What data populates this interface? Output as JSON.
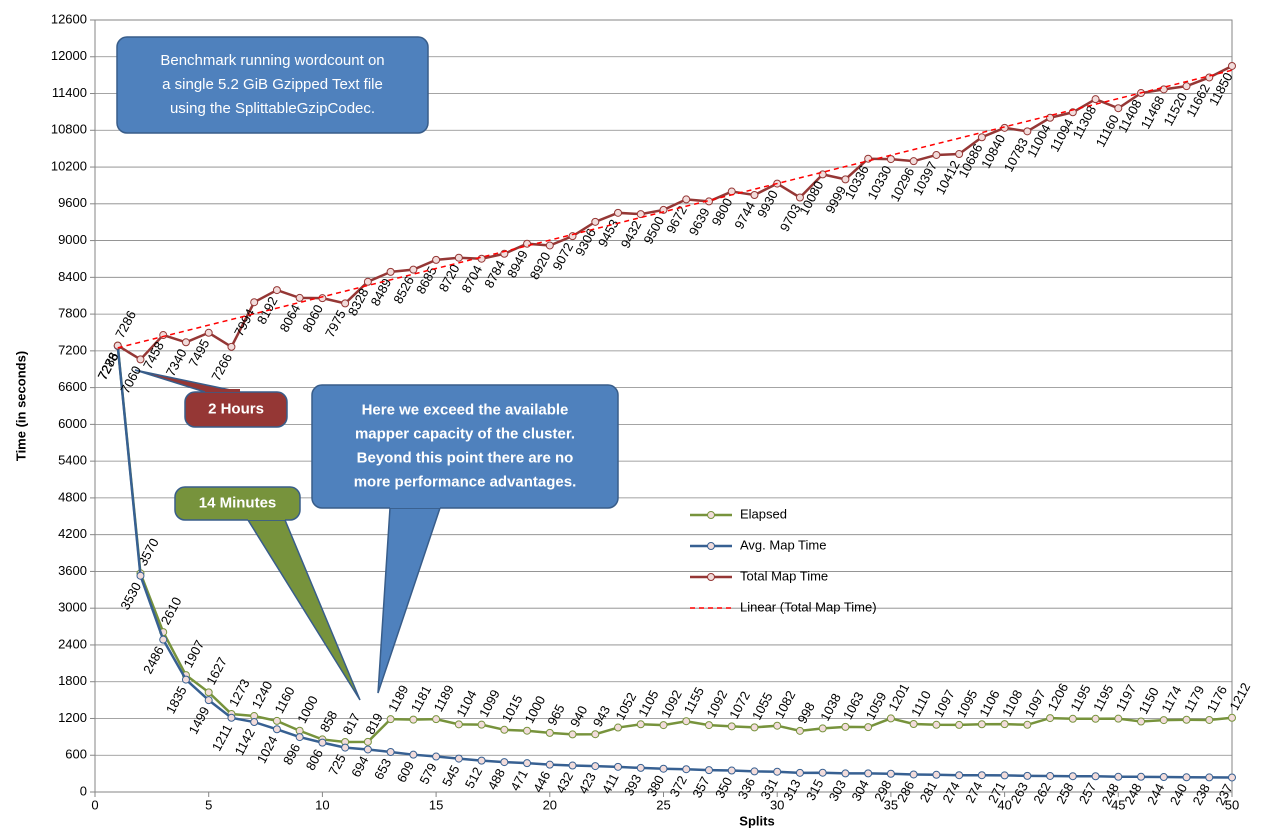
{
  "chart_data": {
    "type": "line",
    "xlabel": "Splits",
    "ylabel": "Time (in seconds)",
    "xlim": [
      0,
      50
    ],
    "xticks": [
      0,
      5,
      10,
      15,
      20,
      25,
      30,
      35,
      40,
      45,
      50
    ],
    "ylim": [
      0,
      12600
    ],
    "yticks": [
      0,
      600,
      1200,
      1800,
      2400,
      3000,
      3600,
      4200,
      4800,
      5400,
      6000,
      6600,
      7200,
      7800,
      8400,
      9000,
      9600,
      10200,
      10800,
      11400,
      12000,
      12600
    ],
    "grid": true,
    "x": [
      1,
      2,
      3,
      4,
      5,
      6,
      7,
      8,
      9,
      10,
      11,
      12,
      13,
      14,
      15,
      16,
      17,
      18,
      19,
      20,
      21,
      22,
      23,
      24,
      25,
      26,
      27,
      28,
      29,
      30,
      31,
      32,
      33,
      34,
      35,
      36,
      37,
      38,
      39,
      40,
      41,
      42,
      43,
      44,
      45,
      46,
      47,
      48,
      49,
      50
    ],
    "series": [
      {
        "name": "Elapsed",
        "color": "#77933c",
        "label_side": "above",
        "values": [
          7286,
          3570,
          2610,
          1907,
          1627,
          1273,
          1240,
          1160,
          1000,
          858,
          817,
          819,
          1189,
          1181,
          1189,
          1104,
          1099,
          1015,
          1000,
          965,
          940,
          943,
          1052,
          1105,
          1092,
          1155,
          1092,
          1072,
          1055,
          1082,
          998,
          1038,
          1063,
          1059,
          1201,
          1110,
          1097,
          1095,
          1106,
          1108,
          1097,
          1206,
          1195,
          1195,
          1197,
          1150,
          1174,
          1179,
          1176,
          1212
        ]
      },
      {
        "name": "Avg. Map Time",
        "color": "#376092",
        "label_side": "below",
        "values": [
          7278,
          3530,
          2486,
          1835,
          1499,
          1211,
          1142,
          1024,
          896,
          806,
          725,
          694,
          653,
          609,
          579,
          545,
          512,
          488,
          471,
          446,
          432,
          423,
          411,
          393,
          380,
          372,
          357,
          350,
          336,
          331,
          313,
          315,
          303,
          304,
          298,
          286,
          281,
          274,
          274,
          271,
          263,
          262,
          258,
          257,
          248,
          248,
          244,
          240,
          238,
          237
        ]
      },
      {
        "name": "Total Map Time",
        "color": "#953735",
        "label_side": "below",
        "values": [
          7286,
          7060,
          7458,
          7340,
          7495,
          7266,
          7994,
          8192,
          8064,
          8060,
          7975,
          8328,
          8489,
          8526,
          8685,
          8720,
          8704,
          8784,
          8949,
          8920,
          9072,
          9306,
          9453,
          9432,
          9500,
          9672,
          9639,
          9800,
          9744,
          9930,
          9703,
          10080,
          9999,
          10336,
          10330,
          10296,
          10397,
          10412,
          10686,
          10840,
          10783,
          11004,
          11094,
          11308,
          11160,
          11408,
          11468,
          11520,
          11662,
          11850
        ]
      },
      {
        "name": "Linear (Total Map Time)",
        "color": "#ff0000",
        "dashed": true,
        "x": [
          1,
          50
        ],
        "values": [
          7250,
          11780
        ]
      }
    ],
    "annotations": [
      {
        "lines": [
          "Benchmark running wordcount on",
          "a single 5.2 GiB Gzipped Text file",
          "using the SplittableGzipCodec."
        ],
        "color": "#4f81bd"
      },
      {
        "lines": [
          "2 Hours"
        ],
        "color": "#953735"
      },
      {
        "lines": [
          "14 Minutes"
        ],
        "color": "#77933c"
      },
      {
        "lines": [
          "Here we exceed the available",
          "mapper capacity of the cluster.",
          "Beyond this point there are no",
          "more performance advantages."
        ],
        "color": "#4f81bd"
      }
    ]
  }
}
